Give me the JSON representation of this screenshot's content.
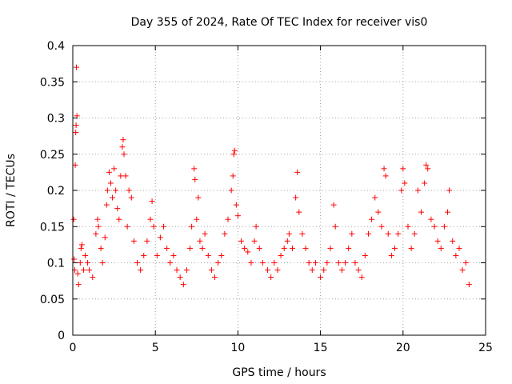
{
  "chart_data": {
    "type": "scatter",
    "title": "Day 355 of 2024, Rate Of TEC Index for receiver vis0",
    "xlabel": "GPS time / hours",
    "ylabel": "ROTI / TECUs",
    "xlim": [
      0,
      25
    ],
    "ylim": [
      0,
      0.4
    ],
    "xticks": [
      0,
      5,
      10,
      15,
      20,
      25
    ],
    "xtick_labels": [
      "0",
      "5",
      "10",
      "15",
      "20",
      "25"
    ],
    "yticks": [
      0,
      0.05,
      0.1,
      0.15,
      0.2,
      0.25,
      0.3,
      0.35,
      0.4
    ],
    "ytick_labels": [
      "0",
      "0.05",
      "0.1",
      "0.15",
      "0.2",
      "0.25",
      "0.3",
      "0.35",
      "0.4"
    ],
    "grid": true,
    "marker": "+",
    "color": "#ff0000",
    "series": [
      {
        "name": "ROTI",
        "points": [
          [
            0.05,
            0.16
          ],
          [
            0.08,
            0.105
          ],
          [
            0.12,
            0.09
          ],
          [
            0.15,
            0.235
          ],
          [
            0.18,
            0.28
          ],
          [
            0.2,
            0.29
          ],
          [
            0.22,
            0.37
          ],
          [
            0.25,
            0.303
          ],
          [
            0.3,
            0.085
          ],
          [
            0.35,
            0.07
          ],
          [
            0.45,
            0.1
          ],
          [
            0.5,
            0.12
          ],
          [
            0.55,
            0.125
          ],
          [
            0.65,
            0.09
          ],
          [
            0.75,
            0.11
          ],
          [
            0.9,
            0.1
          ],
          [
            1.0,
            0.09
          ],
          [
            1.2,
            0.08
          ],
          [
            1.4,
            0.14
          ],
          [
            1.5,
            0.16
          ],
          [
            1.55,
            0.15
          ],
          [
            1.7,
            0.12
          ],
          [
            1.8,
            0.1
          ],
          [
            1.95,
            0.135
          ],
          [
            2.05,
            0.18
          ],
          [
            2.1,
            0.2
          ],
          [
            2.2,
            0.225
          ],
          [
            2.3,
            0.21
          ],
          [
            2.4,
            0.19
          ],
          [
            2.5,
            0.23
          ],
          [
            2.6,
            0.2
          ],
          [
            2.7,
            0.175
          ],
          [
            2.8,
            0.16
          ],
          [
            2.9,
            0.22
          ],
          [
            3.0,
            0.26
          ],
          [
            3.05,
            0.27
          ],
          [
            3.1,
            0.25
          ],
          [
            3.2,
            0.22
          ],
          [
            3.3,
            0.15
          ],
          [
            3.4,
            0.2
          ],
          [
            3.55,
            0.19
          ],
          [
            3.7,
            0.13
          ],
          [
            3.9,
            0.1
          ],
          [
            4.1,
            0.09
          ],
          [
            4.3,
            0.11
          ],
          [
            4.5,
            0.13
          ],
          [
            4.7,
            0.16
          ],
          [
            4.8,
            0.185
          ],
          [
            4.9,
            0.15
          ],
          [
            5.1,
            0.11
          ],
          [
            5.3,
            0.135
          ],
          [
            5.5,
            0.15
          ],
          [
            5.7,
            0.12
          ],
          [
            5.9,
            0.1
          ],
          [
            6.1,
            0.11
          ],
          [
            6.3,
            0.09
          ],
          [
            6.5,
            0.08
          ],
          [
            6.7,
            0.07
          ],
          [
            6.9,
            0.09
          ],
          [
            7.1,
            0.12
          ],
          [
            7.2,
            0.15
          ],
          [
            7.35,
            0.23
          ],
          [
            7.4,
            0.215
          ],
          [
            7.5,
            0.16
          ],
          [
            7.6,
            0.19
          ],
          [
            7.7,
            0.13
          ],
          [
            7.85,
            0.12
          ],
          [
            8.0,
            0.14
          ],
          [
            8.2,
            0.11
          ],
          [
            8.4,
            0.09
          ],
          [
            8.6,
            0.08
          ],
          [
            8.8,
            0.1
          ],
          [
            9.0,
            0.11
          ],
          [
            9.2,
            0.14
          ],
          [
            9.4,
            0.16
          ],
          [
            9.6,
            0.2
          ],
          [
            9.7,
            0.22
          ],
          [
            9.75,
            0.25
          ],
          [
            9.8,
            0.255
          ],
          [
            9.9,
            0.18
          ],
          [
            10.0,
            0.165
          ],
          [
            10.2,
            0.13
          ],
          [
            10.4,
            0.12
          ],
          [
            10.6,
            0.115
          ],
          [
            10.8,
            0.1
          ],
          [
            11.0,
            0.13
          ],
          [
            11.1,
            0.15
          ],
          [
            11.3,
            0.12
          ],
          [
            11.5,
            0.1
          ],
          [
            11.8,
            0.09
          ],
          [
            12.0,
            0.08
          ],
          [
            12.2,
            0.1
          ],
          [
            12.4,
            0.09
          ],
          [
            12.6,
            0.11
          ],
          [
            12.8,
            0.12
          ],
          [
            13.0,
            0.13
          ],
          [
            13.1,
            0.14
          ],
          [
            13.3,
            0.12
          ],
          [
            13.5,
            0.19
          ],
          [
            13.6,
            0.225
          ],
          [
            13.7,
            0.17
          ],
          [
            13.9,
            0.14
          ],
          [
            14.1,
            0.12
          ],
          [
            14.3,
            0.1
          ],
          [
            14.5,
            0.09
          ],
          [
            14.7,
            0.1
          ],
          [
            15.0,
            0.08
          ],
          [
            15.2,
            0.09
          ],
          [
            15.4,
            0.1
          ],
          [
            15.6,
            0.12
          ],
          [
            15.8,
            0.18
          ],
          [
            15.9,
            0.15
          ],
          [
            16.1,
            0.1
          ],
          [
            16.3,
            0.09
          ],
          [
            16.5,
            0.1
          ],
          [
            16.7,
            0.12
          ],
          [
            16.9,
            0.14
          ],
          [
            17.1,
            0.1
          ],
          [
            17.3,
            0.09
          ],
          [
            17.5,
            0.08
          ],
          [
            17.7,
            0.11
          ],
          [
            17.9,
            0.14
          ],
          [
            18.1,
            0.16
          ],
          [
            18.3,
            0.19
          ],
          [
            18.5,
            0.17
          ],
          [
            18.7,
            0.15
          ],
          [
            18.85,
            0.23
          ],
          [
            18.95,
            0.22
          ],
          [
            19.1,
            0.14
          ],
          [
            19.3,
            0.11
          ],
          [
            19.5,
            0.12
          ],
          [
            19.7,
            0.14
          ],
          [
            19.9,
            0.2
          ],
          [
            20.0,
            0.23
          ],
          [
            20.1,
            0.21
          ],
          [
            20.3,
            0.15
          ],
          [
            20.5,
            0.12
          ],
          [
            20.7,
            0.14
          ],
          [
            20.9,
            0.2
          ],
          [
            21.1,
            0.17
          ],
          [
            21.3,
            0.21
          ],
          [
            21.4,
            0.235
          ],
          [
            21.5,
            0.23
          ],
          [
            21.7,
            0.16
          ],
          [
            21.9,
            0.15
          ],
          [
            22.1,
            0.13
          ],
          [
            22.3,
            0.12
          ],
          [
            22.5,
            0.15
          ],
          [
            22.7,
            0.17
          ],
          [
            22.8,
            0.2
          ],
          [
            23.0,
            0.13
          ],
          [
            23.2,
            0.11
          ],
          [
            23.4,
            0.12
          ],
          [
            23.6,
            0.09
          ],
          [
            23.8,
            0.1
          ],
          [
            24.0,
            0.07
          ]
        ]
      }
    ]
  }
}
